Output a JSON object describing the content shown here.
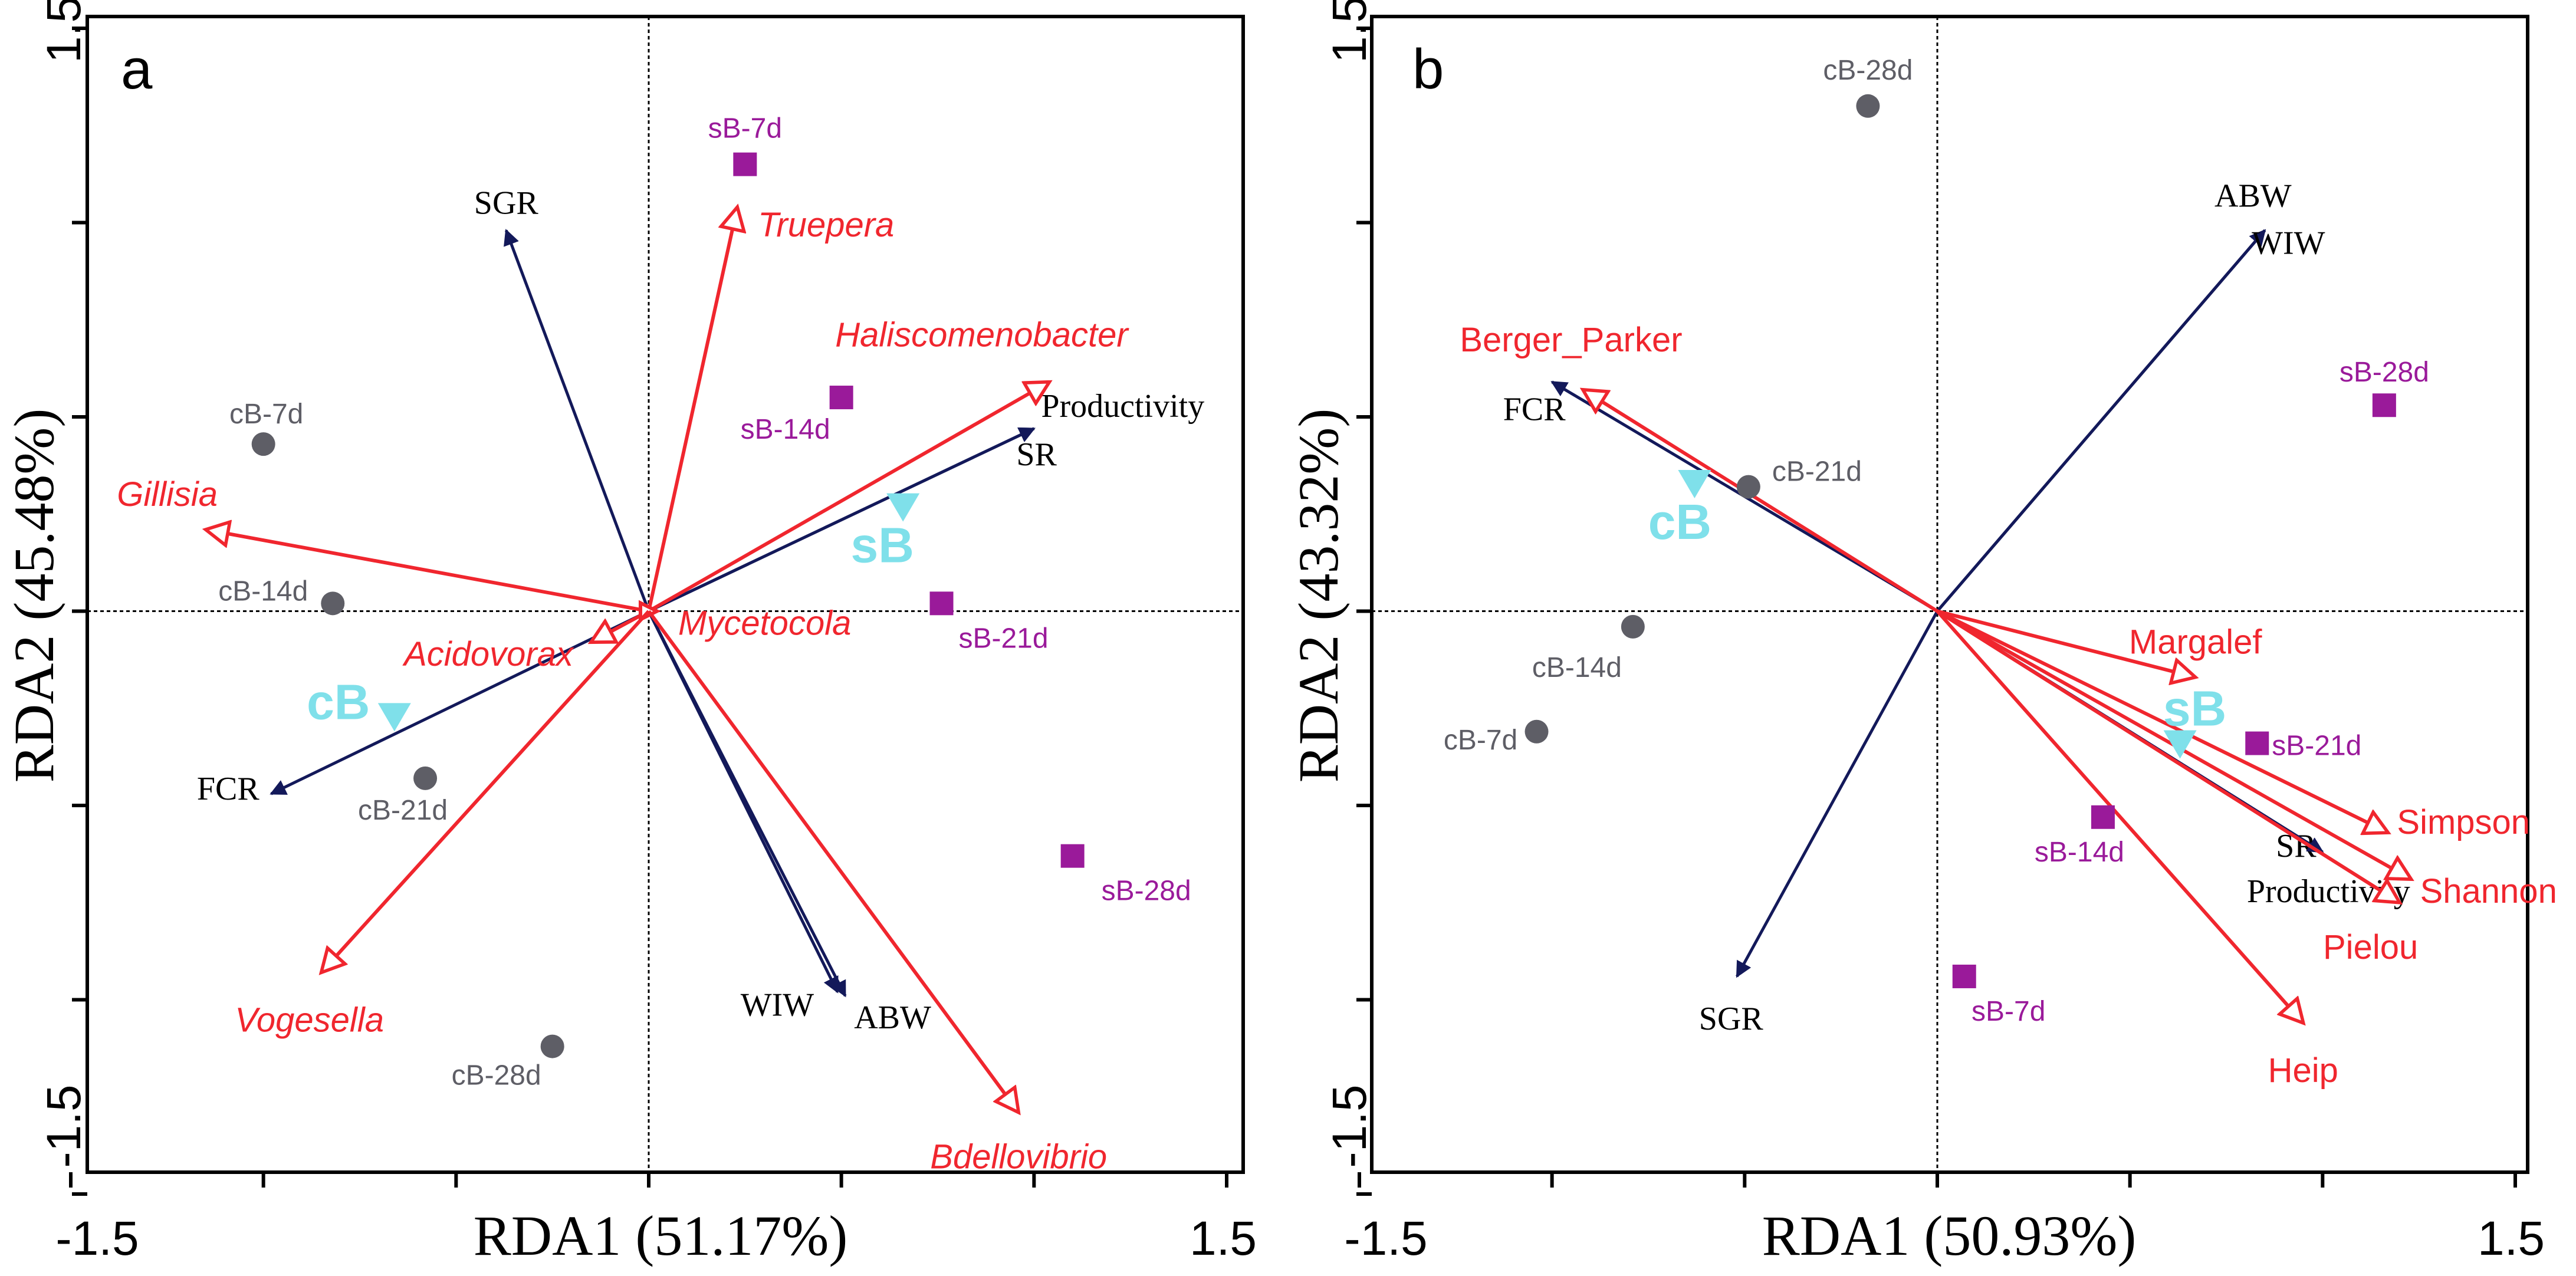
{
  "colors": {
    "env_arrow": "#13195a",
    "species_arrow": "#f0262e",
    "control": "#5e5e66",
    "treatment": "#9a1a9a",
    "centroid": "#7fe0ea"
  },
  "chart_data": [
    {
      "type": "scatter",
      "panel": "a",
      "xlabel": "RDA1 (51.17%)",
      "ylabel": "RDA2 (45.48%)",
      "xlim": [
        -1.5,
        1.5
      ],
      "ylim": [
        -1.5,
        1.5
      ],
      "x_ticks": [
        -1.5,
        -1.0,
        -0.5,
        0.0,
        0.5,
        1.0,
        1.5
      ],
      "y_ticks": [
        -1.5,
        -1.0,
        -0.5,
        0.0,
        0.5,
        1.0,
        1.5
      ],
      "x_tick_labels": [
        "-1.5",
        "1.5"
      ],
      "y_tick_labels": [
        "1.5",
        "-1.5"
      ],
      "env_arrows": [
        {
          "label": "SGR",
          "x": -0.37,
          "y": 0.98
        },
        {
          "label": "Productivity",
          "x": 1.0,
          "y": 0.47
        },
        {
          "label": "SR",
          "x": 1.0,
          "y": 0.47
        },
        {
          "label": "FCR",
          "x": -0.98,
          "y": -0.47
        },
        {
          "label": "WIW",
          "x": 0.49,
          "y": -0.98
        },
        {
          "label": "ABW",
          "x": 0.51,
          "y": -0.99
        }
      ],
      "species_arrows": [
        {
          "label": "Truepera",
          "x": 0.23,
          "y": 1.04
        },
        {
          "label": "Haliscomenobacter",
          "x": 1.04,
          "y": 0.59
        },
        {
          "label": "Gillisia",
          "x": -1.15,
          "y": 0.21
        },
        {
          "label": "Acidovorax",
          "x": -0.15,
          "y": -0.08
        },
        {
          "label": "Mycetocola",
          "x": 0.0,
          "y": 0.0
        },
        {
          "label": "Vogesella",
          "x": -0.85,
          "y": -0.93
        },
        {
          "label": "Bdellovibrio",
          "x": 0.96,
          "y": -1.29
        }
      ],
      "samples": [
        {
          "label": "sB-7d",
          "group": "sB",
          "x": 0.25,
          "y": 1.15
        },
        {
          "label": "sB-14d",
          "group": "sB",
          "x": 0.5,
          "y": 0.55
        },
        {
          "label": "sB-21d",
          "group": "sB",
          "x": 0.76,
          "y": 0.02
        },
        {
          "label": "sB-28d",
          "group": "sB",
          "x": 1.1,
          "y": -0.63
        },
        {
          "label": "cB-7d",
          "group": "cB",
          "x": -1.0,
          "y": 0.43
        },
        {
          "label": "cB-14d",
          "group": "cB",
          "x": -0.82,
          "y": 0.02
        },
        {
          "label": "cB-21d",
          "group": "cB",
          "x": -0.58,
          "y": -0.43
        },
        {
          "label": "cB-28d",
          "group": "cB",
          "x": -0.25,
          "y": -1.12
        }
      ],
      "centroids": [
        {
          "label": "sB",
          "x": 0.66,
          "y": 0.27
        },
        {
          "label": "cB",
          "x": -0.66,
          "y": -0.27
        }
      ]
    },
    {
      "type": "scatter",
      "panel": "b",
      "xlabel": "RDA1 (50.93%)",
      "ylabel": "RDA2 (43.32%)",
      "xlim": [
        -1.5,
        1.5
      ],
      "ylim": [
        -1.5,
        1.5
      ],
      "x_ticks": [
        -1.5,
        -1.0,
        -0.5,
        0.0,
        0.5,
        1.0,
        1.5
      ],
      "y_ticks": [
        -1.5,
        -1.0,
        -0.5,
        0.0,
        0.5,
        1.0,
        1.5
      ],
      "x_tick_labels": [
        "-1.5",
        "1.5"
      ],
      "y_tick_labels": [
        "1.5",
        "-1.5"
      ],
      "env_arrows": [
        {
          "label": "ABW",
          "x": 0.85,
          "y": 0.98
        },
        {
          "label": "WIW",
          "x": 0.85,
          "y": 0.98
        },
        {
          "label": "FCR",
          "x": -1.0,
          "y": 0.59
        },
        {
          "label": "SR",
          "x": 1.0,
          "y": -0.62
        },
        {
          "label": "Productivity",
          "x": 1.0,
          "y": -0.62
        },
        {
          "label": "SGR",
          "x": -0.52,
          "y": -0.94
        }
      ],
      "species_arrows": [
        {
          "label": "Berger_Parker",
          "x": -0.92,
          "y": 0.57
        },
        {
          "label": "Margalef",
          "x": 0.67,
          "y": -0.17
        },
        {
          "label": "Simpson",
          "x": 1.17,
          "y": -0.57
        },
        {
          "label": "Shannon",
          "x": 1.23,
          "y": -0.69
        },
        {
          "label": "Pielou",
          "x": 1.2,
          "y": -0.75
        },
        {
          "label": "Heip",
          "x": 0.95,
          "y": -1.06
        }
      ],
      "samples": [
        {
          "label": "cB-28d",
          "group": "cB",
          "x": -0.18,
          "y": 1.3
        },
        {
          "label": "cB-21d",
          "group": "cB",
          "x": -0.49,
          "y": 0.32
        },
        {
          "label": "cB-14d",
          "group": "cB",
          "x": -0.79,
          "y": -0.04
        },
        {
          "label": "cB-7d",
          "group": "cB",
          "x": -1.04,
          "y": -0.31
        },
        {
          "label": "sB-28d",
          "group": "sB",
          "x": 1.16,
          "y": 0.53
        },
        {
          "label": "sB-21d",
          "group": "sB",
          "x": 0.83,
          "y": -0.34
        },
        {
          "label": "sB-14d",
          "group": "sB",
          "x": 0.43,
          "y": -0.53
        },
        {
          "label": "sB-7d",
          "group": "sB",
          "x": 0.07,
          "y": -0.94
        }
      ],
      "centroids": [
        {
          "label": "cB",
          "x": -0.63,
          "y": 0.33
        },
        {
          "label": "sB",
          "x": 0.63,
          "y": -0.34
        }
      ]
    }
  ]
}
